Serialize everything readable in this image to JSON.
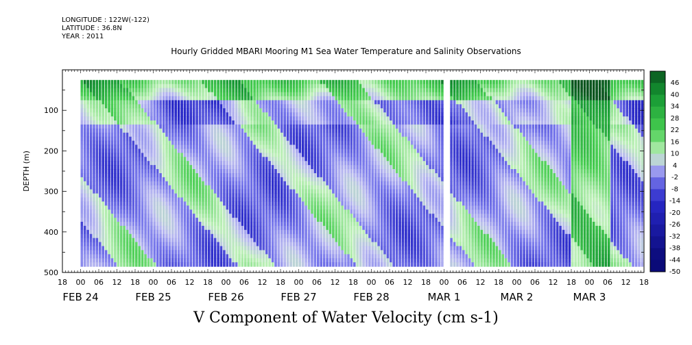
{
  "header": {
    "longitude": "LONGITUDE : 122W(-122)",
    "latitude": "LATITUDE : 36.8N",
    "year": "YEAR : 2011"
  },
  "title": "Hourly Gridded MBARI Mooring M1 Sea Water Temperature and Salinity Observations",
  "variable_title": "V Component of Water Velocity (cm s-1)",
  "colors": {
    "strong_pos": "#0d5a1e",
    "pos": "#38c04a",
    "weak_pos": "#b6efb0",
    "weak_neg": "#b8b8ee",
    "neg": "#6f6ff0",
    "strong_neg": "#0a0a7a"
  },
  "chart_data": {
    "type": "heatmap",
    "title": "Hourly Gridded MBARI Mooring M1 Sea Water Temperature and Salinity Observations",
    "xlabel": "",
    "ylabel": "DEPTH (m)",
    "ylim": [
      500,
      0
    ],
    "y_ticks": [
      100,
      200,
      300,
      400,
      500
    ],
    "x_tick_labels": [
      "18",
      "00",
      "06",
      "12",
      "18",
      "00",
      "06",
      "12",
      "18",
      "00",
      "06",
      "12",
      "18",
      "00",
      "06",
      "12",
      "18",
      "00",
      "06",
      "12",
      "18",
      "00",
      "06",
      "12",
      "18",
      "00",
      "06",
      "12",
      "18",
      "00",
      "06",
      "12",
      "18"
    ],
    "x_date_labels": [
      "FEB 24",
      "FEB 25",
      "FEB 26",
      "FEB 27",
      "FEB 28",
      "MAR 1",
      "MAR 2",
      "MAR 3"
    ],
    "x_range": [
      "2011-02-23 18:00",
      "2011-03-03 18:00"
    ],
    "data_start": "2011-02-24 00:00",
    "gap_at": "2011-03-01 00:00",
    "data_depth_range": [
      25,
      485
    ],
    "colorbar_levels": [
      -50,
      -44,
      -38,
      -32,
      -26,
      -20,
      -14,
      -8,
      -2,
      4,
      10,
      16,
      22,
      28,
      34,
      40,
      46
    ],
    "colorbar_labels": [
      "46",
      "40",
      "34",
      "28",
      "22",
      "16",
      "10",
      "4",
      "-2",
      "-8",
      "-14",
      "-20",
      "-26",
      "-32",
      "-38",
      "-44",
      "-50"
    ],
    "features": [
      {
        "region": "near-surface 25-70 m",
        "value": 20
      },
      {
        "region": "mid-depth bands",
        "value": -8
      },
      {
        "region": "deep green streaks",
        "value": 6
      },
      {
        "region": "MAR 2 18:00 - MAR 3 06:00 column",
        "value": 30
      }
    ]
  }
}
